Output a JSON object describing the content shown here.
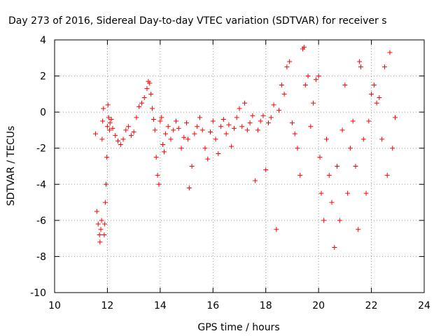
{
  "chart_data": {
    "type": "scatter",
    "title": "Day 273 of 2016, Sidereal Day-to-day VTEC variation (SDTVAR) for receiver s",
    "xlabel": "GPS time / hours",
    "ylabel": "SDTVAR / TECUs",
    "xlim": [
      10,
      24
    ],
    "ylim": [
      -10,
      4
    ],
    "x_ticks": [
      "10",
      "12",
      "14",
      "16",
      "18",
      "20",
      "22",
      "24"
    ],
    "y_ticks": [
      "-10",
      "-8",
      "-6",
      "-4",
      "-2",
      "0",
      "2",
      "4"
    ],
    "grid": true,
    "legend": "none",
    "marker": "plus",
    "color": "#ff0000",
    "series": [
      {
        "x": [
          11.55,
          11.6,
          11.65,
          11.7,
          11.72,
          11.75,
          11.78,
          11.8,
          11.82,
          11.85,
          11.88,
          11.9,
          11.92,
          11.95,
          11.98,
          12.0,
          12.02,
          12.05,
          12.08,
          12.1,
          12.15,
          12.2,
          12.3,
          12.4,
          12.5,
          12.6,
          12.7,
          12.8,
          12.9,
          13.0,
          13.1,
          13.2,
          13.3,
          13.4,
          13.5,
          13.55,
          13.6,
          13.65,
          13.7,
          13.75,
          13.8,
          13.85,
          13.9,
          13.95,
          14.0,
          14.05,
          14.1,
          14.15,
          14.2,
          14.3,
          14.4,
          14.5,
          14.6,
          14.7,
          14.8,
          14.9,
          15.0,
          15.05,
          15.1,
          15.2,
          15.3,
          15.4,
          15.5,
          15.6,
          15.7,
          15.8,
          15.9,
          16.0,
          16.1,
          16.2,
          16.3,
          16.4,
          16.5,
          16.6,
          16.7,
          16.8,
          16.9,
          17.0,
          17.1,
          17.2,
          17.3,
          17.4,
          17.5,
          17.6,
          17.7,
          17.8,
          17.9,
          18.0,
          18.1,
          18.2,
          18.3,
          18.4,
          18.5,
          18.6,
          18.7,
          18.8,
          18.9,
          19.0,
          19.1,
          19.2,
          19.3,
          19.4,
          19.45,
          19.5,
          19.6,
          19.7,
          19.8,
          19.9,
          20.0,
          20.05,
          20.1,
          20.2,
          20.3,
          20.4,
          20.5,
          20.6,
          20.7,
          20.8,
          20.9,
          21.0,
          21.1,
          21.2,
          21.3,
          21.4,
          21.5,
          21.55,
          21.6,
          21.7,
          21.8,
          21.9,
          22.0,
          22.1,
          22.2,
          22.3,
          22.4,
          22.5,
          22.6,
          22.7,
          22.8,
          22.9
        ],
        "y": [
          -1.2,
          -5.5,
          -6.2,
          -6.8,
          -7.2,
          -6.5,
          -6.0,
          -1.5,
          -0.5,
          0.2,
          -6.8,
          -6.2,
          -5.0,
          -4.0,
          -2.5,
          -0.8,
          0.4,
          -0.3,
          -1.0,
          -0.6,
          -0.4,
          -0.9,
          -1.3,
          -1.6,
          -1.8,
          -1.5,
          -1.0,
          -0.8,
          -1.3,
          -1.1,
          -0.3,
          0.3,
          0.5,
          0.8,
          1.3,
          1.7,
          1.6,
          1.0,
          0.2,
          -0.4,
          -1.0,
          -2.5,
          -3.5,
          -4.0,
          -0.5,
          -0.3,
          -1.8,
          -2.2,
          -1.2,
          -0.8,
          -1.5,
          -1.0,
          -0.5,
          -0.9,
          -2.0,
          -1.4,
          -0.6,
          -1.5,
          -4.2,
          -3.0,
          -1.2,
          -0.8,
          -0.3,
          -1.0,
          -2.0,
          -2.6,
          -1.1,
          -0.5,
          -1.5,
          -2.3,
          -0.8,
          -0.4,
          -1.2,
          -0.7,
          -1.9,
          -0.9,
          -0.3,
          0.2,
          -0.8,
          0.5,
          -1.0,
          -0.6,
          -0.2,
          -3.8,
          -1.0,
          -0.5,
          -0.2,
          -3.2,
          -0.6,
          -0.3,
          0.4,
          -6.5,
          0.1,
          1.5,
          1.0,
          2.5,
          2.8,
          -0.6,
          -1.2,
          -2.0,
          -3.5,
          3.5,
          3.6,
          1.5,
          2.0,
          -0.8,
          0.5,
          1.8,
          2.0,
          -2.5,
          -4.5,
          -6.0,
          -1.5,
          -3.5,
          -5.0,
          -7.5,
          -3.0,
          -6.0,
          -1.0,
          1.5,
          -4.5,
          -2.0,
          -0.5,
          -3.0,
          -6.5,
          2.8,
          2.5,
          -1.5,
          -4.5,
          -0.5,
          1.0,
          1.5,
          0.5,
          0.8,
          -1.5,
          2.5,
          -3.5,
          3.3,
          -2.0,
          -0.3
        ]
      }
    ]
  }
}
